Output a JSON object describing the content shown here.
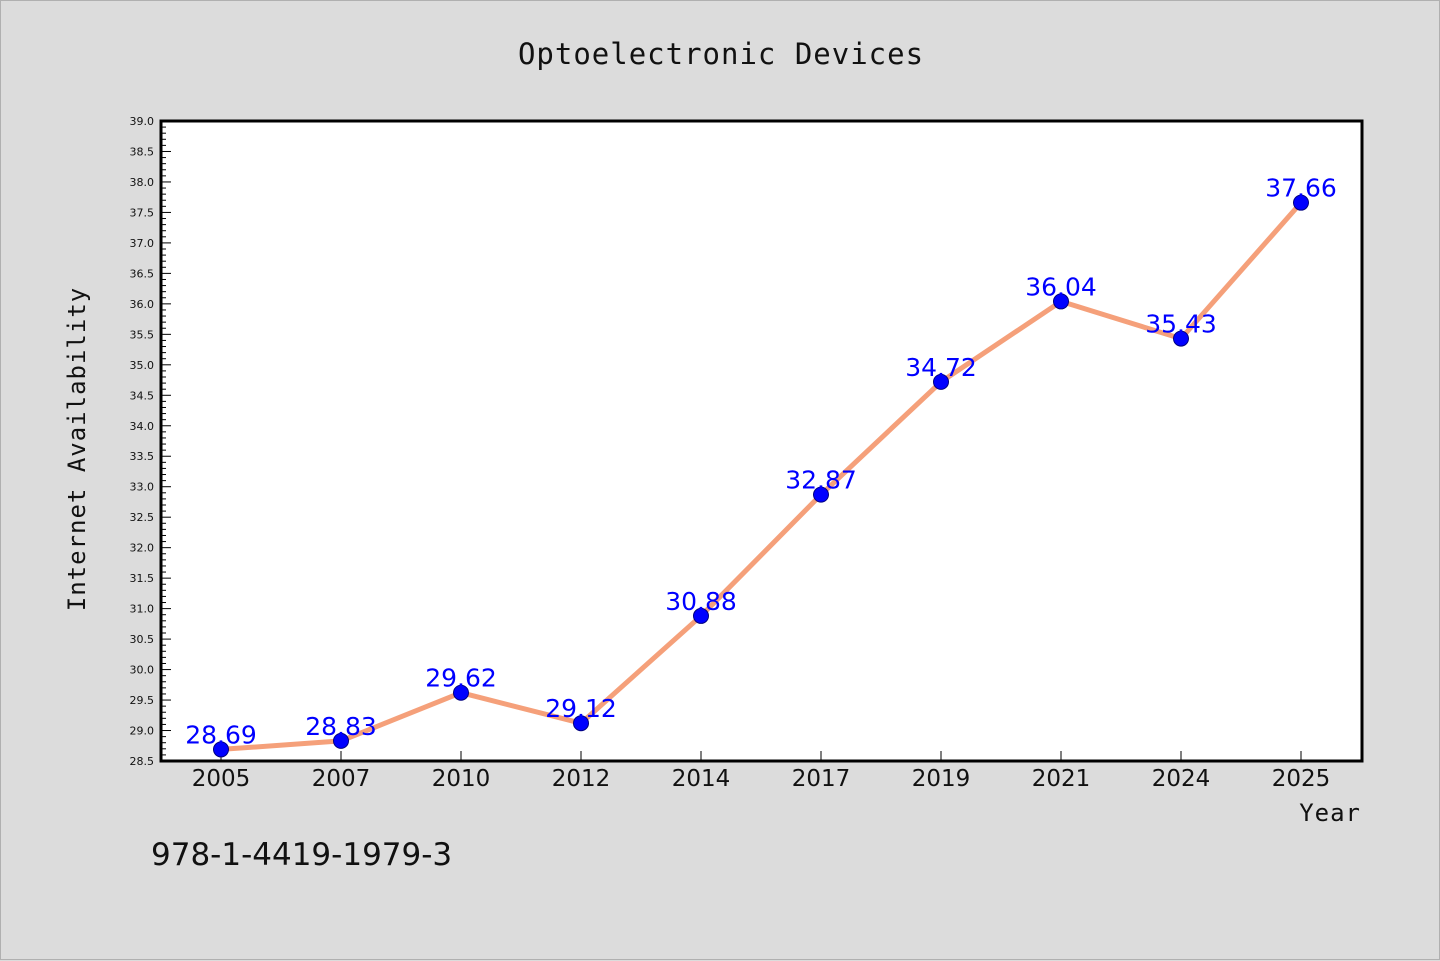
{
  "colors": {
    "background": "#dcdcdc",
    "plot_background": "#ffffff",
    "line": "#f5a07a",
    "marker": "#0000ff",
    "marker_edge": "#000080",
    "data_label": "#0000ff",
    "text": "#111111"
  },
  "footer": {
    "code": "978-1-4419-1979-3"
  },
  "chart_data": {
    "type": "line",
    "title": "Optoelectronic Devices",
    "xlabel": "Year",
    "ylabel": "Internet Availability",
    "categories": [
      "2005",
      "2007",
      "2010",
      "2012",
      "2014",
      "2017",
      "2019",
      "2021",
      "2024",
      "2025"
    ],
    "series": [
      {
        "values": [
          28.69,
          28.83,
          29.62,
          29.12,
          30.88,
          32.87,
          34.72,
          36.04,
          35.43,
          37.66
        ],
        "labels": [
          "28.69",
          "28.83",
          "29.62",
          "29.12",
          "30.88",
          "32.87",
          "34.72",
          "36.04",
          "35.43",
          "37.66"
        ]
      }
    ],
    "ylim": [
      28.5,
      39.0
    ],
    "yticks": [
      "28.5",
      "29.0",
      "29.5",
      "30.0",
      "30.5",
      "31.0",
      "31.5",
      "32.0",
      "32.5",
      "33.0",
      "33.5",
      "34.0",
      "34.5",
      "35.0",
      "35.5",
      "36.0",
      "36.5",
      "37.0",
      "37.5",
      "38.0",
      "38.5",
      "39.0"
    ],
    "grid": false,
    "legend": "none"
  }
}
